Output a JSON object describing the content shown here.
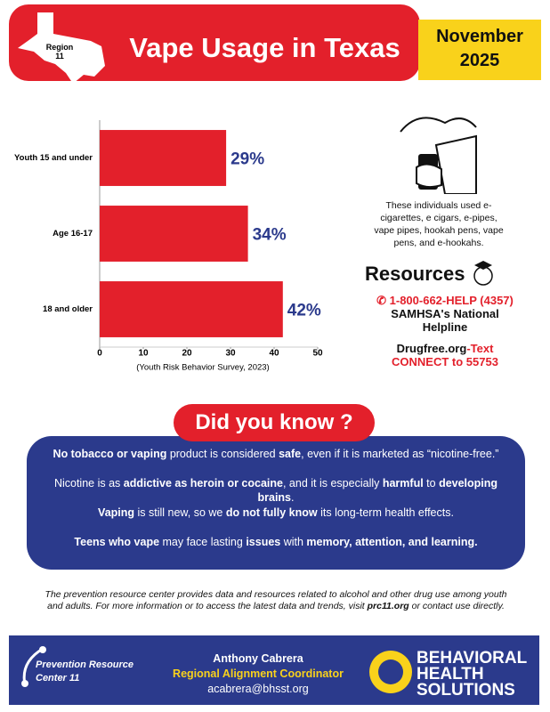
{
  "header": {
    "region": "Region 11",
    "title": "Vape Usage in Texas",
    "date": {
      "month": "November",
      "year": "2025"
    }
  },
  "chart_data": {
    "type": "hbar",
    "categories": [
      "Youth 15 and under",
      "Age 16-17",
      "18 and older"
    ],
    "values": [
      29,
      34,
      42
    ],
    "value_labels": [
      "29%",
      "34%",
      "42%"
    ],
    "color": "#e3202b",
    "label_color": "#2b3a8c",
    "xlim": [
      0,
      50
    ],
    "xticks": [
      0,
      10,
      20,
      30,
      40,
      50
    ],
    "source": "(Youth Risk Behavior Survey, 2023)"
  },
  "side": {
    "description": "These individuals used e-cigarettes, e cigars, e-pipes, vape pipes, hookah pens, vape pens, and e-hookahs.",
    "resources_title": "Resources",
    "helpline": {
      "number": "1-800-662-HELP (4357)",
      "name": "SAMHSA's National Helpline"
    },
    "drugfree": {
      "site": "Drugfree.org",
      "text": "-Text CONNECT to 55753"
    }
  },
  "did_you_know": {
    "title": "Did you know ?",
    "facts": [
      [
        {
          "text": "No tobacco or vaping",
          "bold": true
        },
        {
          "text": " product is considered ",
          "bold": false
        },
        {
          "text": "safe",
          "bold": true
        },
        {
          "text": ", even if it is marketed as “nicotine-free.”",
          "bold": false
        }
      ],
      [
        {
          "text": "Nicotine is as ",
          "bold": false
        },
        {
          "text": "addictive as heroin or cocaine",
          "bold": true
        },
        {
          "text": ", and it is especially ",
          "bold": false
        },
        {
          "text": "harmful",
          "bold": true
        },
        {
          "text": " to ",
          "bold": false
        },
        {
          "text": "developing brains",
          "bold": true
        },
        {
          "text": ".",
          "bold": false
        }
      ],
      [
        {
          "text": "Vaping",
          "bold": true
        },
        {
          "text": " is still new, so we ",
          "bold": false
        },
        {
          "text": "do not fully know",
          "bold": true
        },
        {
          "text": " its long-term health effects.",
          "bold": false
        }
      ],
      [
        {
          "text": "Teens who vape",
          "bold": true
        },
        {
          "text": " may face lasting ",
          "bold": false
        },
        {
          "text": "issues",
          "bold": true
        },
        {
          "text": " with ",
          "bold": false
        },
        {
          "text": "memory, attention, and learning.",
          "bold": true
        }
      ]
    ]
  },
  "note": [
    {
      "text": "The prevention resource center provides data and resources related to alcohol and other drug use among youth and adults. For more information or to access the latest data and trends, visit ",
      "bold": false
    },
    {
      "text": "prc11.org",
      "bold": true
    },
    {
      "text": " or contact use directly.",
      "bold": false
    }
  ],
  "footer": {
    "org": "Prevention Resource Center 11",
    "name": "Anthony Cabrera",
    "role": "Regional Alignment Coordinator",
    "email": "acabrera@bhsst.org",
    "partner": "BEHAVIORAL HEALTH SOLUTIONS"
  }
}
